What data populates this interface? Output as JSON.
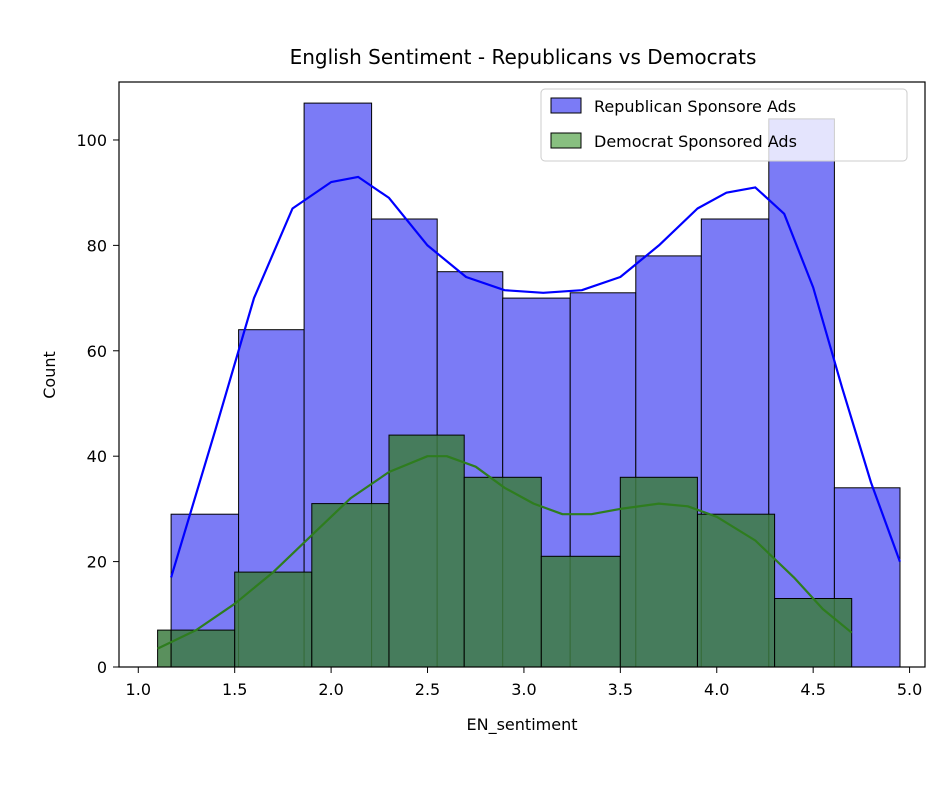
{
  "chart_data": {
    "type": "histogram",
    "title": "English Sentiment - Republicans vs Democrats",
    "xlabel": "EN_sentiment",
    "ylabel": "Count",
    "xlim": [
      0.9,
      5.08
    ],
    "ylim": [
      0,
      111
    ],
    "xticks": [
      "1.0",
      "1.5",
      "2.0",
      "2.5",
      "3.0",
      "3.5",
      "4.0",
      "4.5",
      "5.0"
    ],
    "yticks": [
      "0",
      "20",
      "40",
      "60",
      "80",
      "100"
    ],
    "grid": false,
    "legend_position": "top-right",
    "series": [
      {
        "name": "Republican Sponsore Ads",
        "color": "#0000ff",
        "bar_fill": "#7b7bf6",
        "bins": [
          {
            "x0": 1.17,
            "x1": 1.52,
            "count": 29
          },
          {
            "x0": 1.52,
            "x1": 1.86,
            "count": 64
          },
          {
            "x0": 1.86,
            "x1": 2.21,
            "count": 107
          },
          {
            "x0": 2.21,
            "x1": 2.55,
            "count": 85
          },
          {
            "x0": 2.55,
            "x1": 2.89,
            "count": 75
          },
          {
            "x0": 2.89,
            "x1": 3.24,
            "count": 70
          },
          {
            "x0": 3.24,
            "x1": 3.58,
            "count": 71
          },
          {
            "x0": 3.58,
            "x1": 3.92,
            "count": 78
          },
          {
            "x0": 3.92,
            "x1": 4.27,
            "count": 85
          },
          {
            "x0": 4.27,
            "x1": 4.61,
            "count": 104
          },
          {
            "x0": 4.61,
            "x1": 4.95,
            "count": 34
          }
        ],
        "kde": [
          [
            1.17,
            17
          ],
          [
            1.4,
            45
          ],
          [
            1.6,
            70
          ],
          [
            1.8,
            87
          ],
          [
            2.0,
            92
          ],
          [
            2.14,
            93
          ],
          [
            2.3,
            89
          ],
          [
            2.5,
            80
          ],
          [
            2.7,
            74
          ],
          [
            2.9,
            71.5
          ],
          [
            3.1,
            71
          ],
          [
            3.3,
            71.5
          ],
          [
            3.5,
            74
          ],
          [
            3.7,
            80
          ],
          [
            3.9,
            87
          ],
          [
            4.05,
            90
          ],
          [
            4.2,
            91
          ],
          [
            4.35,
            86
          ],
          [
            4.5,
            72
          ],
          [
            4.65,
            53
          ],
          [
            4.8,
            35
          ],
          [
            4.95,
            20
          ]
        ]
      },
      {
        "name": "Democrat Sponsored Ads",
        "color": "#2e7d1e",
        "bar_fill": "#3d7d41",
        "bins": [
          {
            "x0": 1.1,
            "x1": 1.17,
            "count": 7
          },
          {
            "x0": 1.17,
            "x1": 1.5,
            "count": 7
          },
          {
            "x0": 1.5,
            "x1": 1.9,
            "count": 18
          },
          {
            "x0": 1.9,
            "x1": 2.3,
            "count": 31
          },
          {
            "x0": 2.3,
            "x1": 2.69,
            "count": 44
          },
          {
            "x0": 2.69,
            "x1": 3.09,
            "count": 36
          },
          {
            "x0": 3.09,
            "x1": 3.5,
            "count": 21
          },
          {
            "x0": 3.5,
            "x1": 3.9,
            "count": 36
          },
          {
            "x0": 3.9,
            "x1": 4.3,
            "count": 29
          },
          {
            "x0": 4.3,
            "x1": 4.7,
            "count": 13
          }
        ],
        "kde": [
          [
            1.1,
            3.5
          ],
          [
            1.3,
            7
          ],
          [
            1.5,
            12
          ],
          [
            1.7,
            18
          ],
          [
            1.9,
            25
          ],
          [
            2.1,
            32
          ],
          [
            2.3,
            37
          ],
          [
            2.5,
            40
          ],
          [
            2.6,
            40
          ],
          [
            2.75,
            38
          ],
          [
            2.9,
            34
          ],
          [
            3.05,
            31
          ],
          [
            3.2,
            29
          ],
          [
            3.35,
            29
          ],
          [
            3.5,
            30
          ],
          [
            3.7,
            31
          ],
          [
            3.85,
            30.5
          ],
          [
            4.0,
            28.5
          ],
          [
            4.2,
            24
          ],
          [
            4.4,
            17
          ],
          [
            4.55,
            11
          ],
          [
            4.7,
            6.5
          ]
        ]
      }
    ]
  }
}
